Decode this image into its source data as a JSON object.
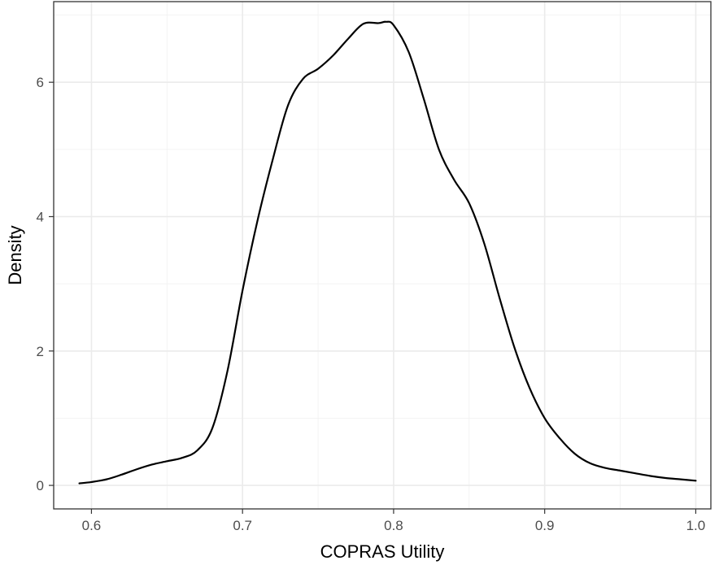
{
  "chart_data": {
    "type": "line",
    "title": "",
    "xlabel": "COPRAS Utility",
    "ylabel": "Density",
    "xlim": [
      0.575,
      1.01
    ],
    "ylim": [
      -0.35,
      7.2
    ],
    "xticks": [
      0.6,
      0.7,
      0.8,
      0.9,
      1.0
    ],
    "xtick_labels": [
      "0.6",
      "0.7",
      "0.8",
      "0.9",
      "1.0"
    ],
    "yticks": [
      0,
      2,
      4,
      6
    ],
    "ytick_labels": [
      "0",
      "2",
      "4",
      "6"
    ],
    "grid": true,
    "legend": "none",
    "series": [
      {
        "color": "#000000",
        "x": [
          0.592,
          0.6,
          0.61,
          0.62,
          0.63,
          0.64,
          0.65,
          0.66,
          0.67,
          0.68,
          0.69,
          0.7,
          0.71,
          0.72,
          0.73,
          0.74,
          0.75,
          0.76,
          0.77,
          0.78,
          0.79,
          0.795,
          0.8,
          0.81,
          0.82,
          0.83,
          0.84,
          0.85,
          0.86,
          0.87,
          0.88,
          0.89,
          0.9,
          0.91,
          0.92,
          0.93,
          0.94,
          0.95,
          0.96,
          0.97,
          0.98,
          0.99,
          1.0
        ],
        "y": [
          0.03,
          0.05,
          0.09,
          0.16,
          0.24,
          0.31,
          0.36,
          0.41,
          0.52,
          0.85,
          1.7,
          2.9,
          3.95,
          4.85,
          5.65,
          6.05,
          6.2,
          6.4,
          6.65,
          6.87,
          6.88,
          6.9,
          6.85,
          6.45,
          5.75,
          5.0,
          4.55,
          4.2,
          3.6,
          2.8,
          2.05,
          1.45,
          1.0,
          0.7,
          0.47,
          0.33,
          0.26,
          0.22,
          0.18,
          0.14,
          0.11,
          0.09,
          0.07
        ]
      }
    ]
  }
}
